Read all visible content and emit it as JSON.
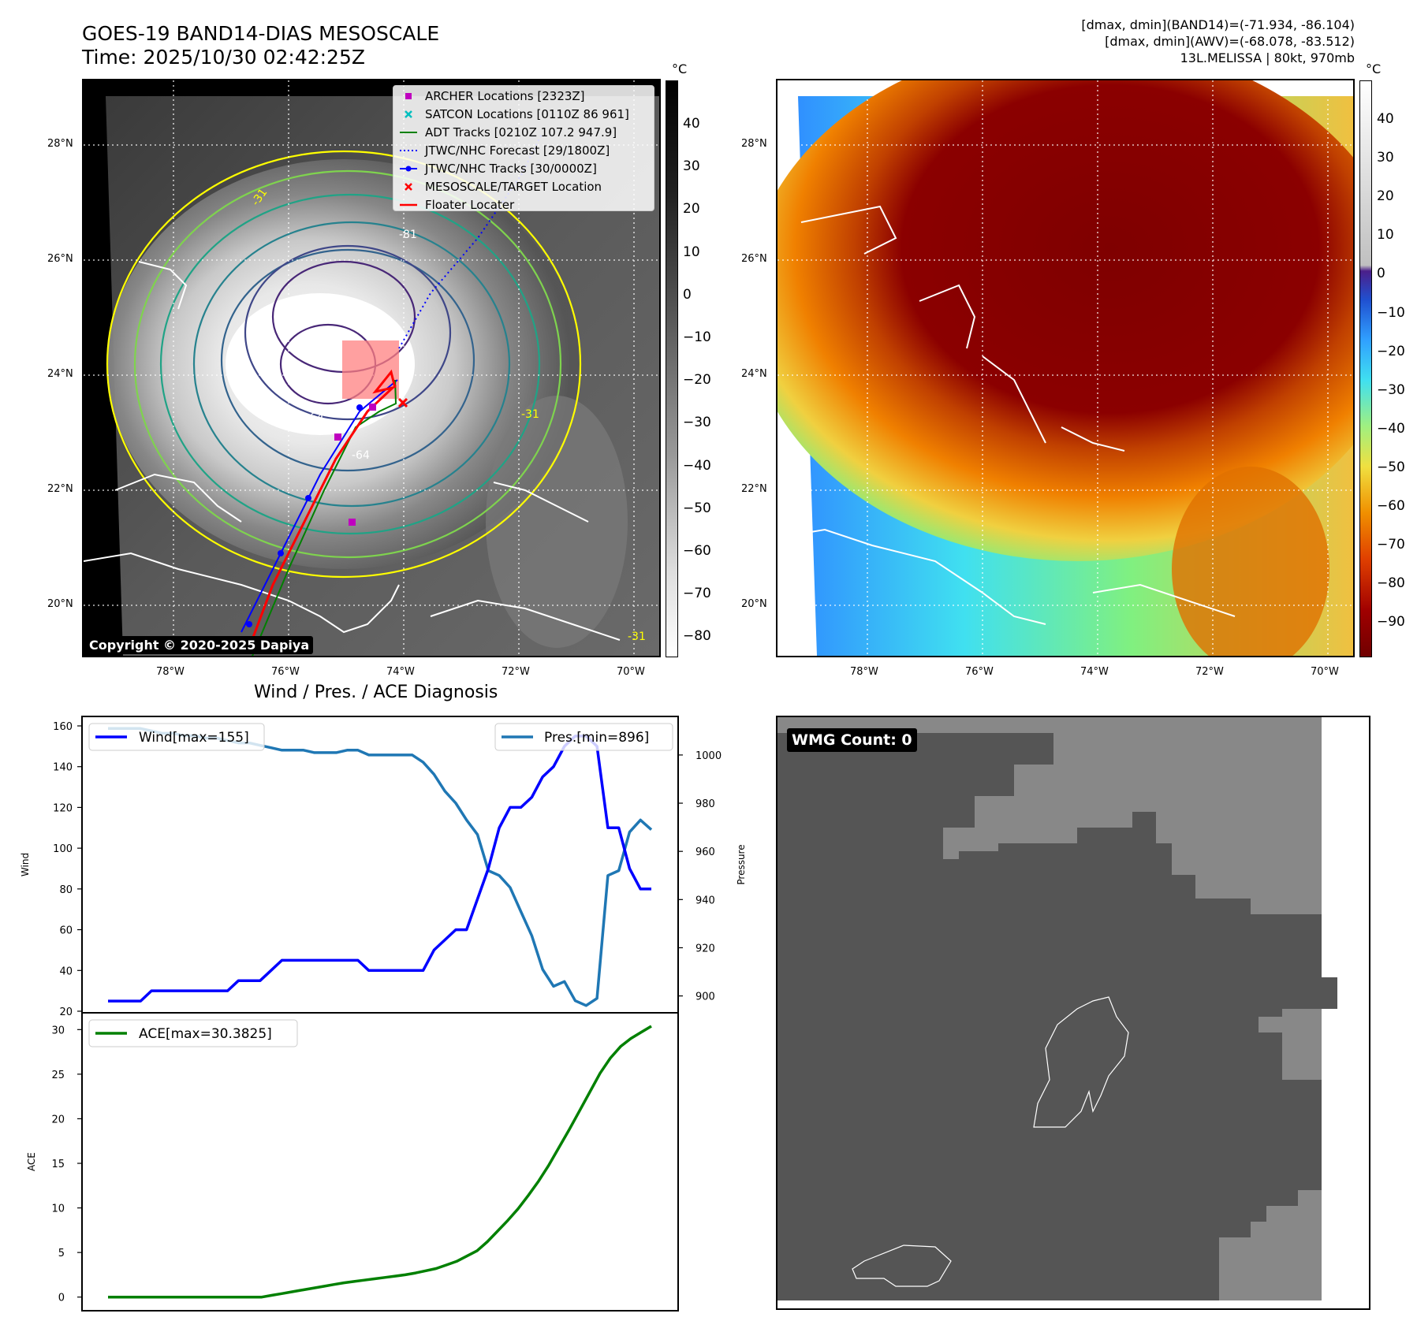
{
  "header": {
    "title_line1": "GOES-19 BAND14-DIAS MESOSCALE",
    "title_line2": "Time: 2025/10/30 02:42:25Z",
    "info_line1": "[dmax, dmin](BAND14)=(-71.934, -86.104)",
    "info_line2": "[dmax, dmin](AWV)=(-68.078, -83.512)",
    "info_line3": "13L.MELISSA | 80kt, 970mb"
  },
  "ir_map": {
    "lat_labels": [
      "28°N",
      "26°N",
      "24°N",
      "22°N",
      "20°N"
    ],
    "lon_labels": [
      "78°W",
      "76°W",
      "74°W",
      "72°W",
      "70°W"
    ],
    "copyright": "Copyright © 2020-2025 Dapiya",
    "colorbar_unit": "°C",
    "colorbar_ticks": [
      "40",
      "30",
      "20",
      "10",
      "0",
      "−10",
      "−20",
      "−30",
      "−40",
      "−50",
      "−60",
      "−70",
      "−80"
    ],
    "contour_labels": [
      "-31",
      "-81",
      "-81",
      "-64",
      "-64",
      "-31",
      "-31"
    ],
    "legend": [
      {
        "label": "ARCHER Locations [2323Z]",
        "marker": "square",
        "color": "#bf00bf"
      },
      {
        "label": "SATCON Locations [0110Z 86 961]",
        "marker": "x",
        "color": "#00bfbf"
      },
      {
        "label": "ADT Tracks [0210Z 107.2 947.9]",
        "marker": "line",
        "color": "#008000"
      },
      {
        "label": "JTWC/NHC Forecast [29/1800Z]",
        "marker": "dotted",
        "color": "#0000ff"
      },
      {
        "label": "JTWC/NHC Tracks [30/0000Z]",
        "marker": "line-dot",
        "color": "#0000ff"
      },
      {
        "label": "MESOSCALE/TARGET Location",
        "marker": "x",
        "color": "#ff0000"
      },
      {
        "label": "Floater Locater",
        "marker": "line",
        "color": "#ff0000"
      }
    ]
  },
  "enh_map": {
    "lat_labels": [
      "28°N",
      "26°N",
      "24°N",
      "22°N",
      "20°N"
    ],
    "lon_labels": [
      "78°W",
      "76°W",
      "74°W",
      "72°W",
      "70°W"
    ],
    "colorbar_unit": "°C",
    "colorbar_ticks": [
      "40",
      "30",
      "20",
      "10",
      "0",
      "−10",
      "−20",
      "−30",
      "−40",
      "−50",
      "−60",
      "−70",
      "−80",
      "−90"
    ]
  },
  "wmg": {
    "label": "WMG Count: 0"
  },
  "chart_data": [
    {
      "type": "line",
      "title": "Wind / Pres. / ACE Diagnosis",
      "xlabel": "",
      "ylabel": "Wind",
      "ylabel_right": "Pressure",
      "ylim": [
        20,
        160
      ],
      "ylim_right": [
        893,
        1016
      ],
      "y_ticks": [
        "160",
        "140",
        "120",
        "100",
        "80",
        "60",
        "40",
        "20"
      ],
      "y_ticks_right": [
        "1000",
        "980",
        "960",
        "940",
        "920",
        "900"
      ],
      "series": [
        {
          "name": "Wind[max=155]",
          "color": "#0000ff",
          "values": [
            25,
            25,
            25,
            25,
            30,
            30,
            30,
            30,
            30,
            30,
            30,
            30,
            35,
            35,
            35,
            40,
            45,
            45,
            45,
            45,
            45,
            45,
            45,
            45,
            40,
            40,
            40,
            40,
            40,
            40,
            50,
            55,
            60,
            60,
            75,
            90,
            110,
            120,
            120,
            125,
            135,
            140,
            150,
            155,
            155,
            150,
            110,
            110,
            90,
            80,
            80
          ]
        },
        {
          "name": "Pres.[min=896]",
          "color": "#1f77b4",
          "values": [
            1011,
            1011,
            1011,
            1011,
            1010,
            1009,
            1009,
            1008,
            1008,
            1007,
            1007,
            1006,
            1005,
            1005,
            1004,
            1003,
            1002,
            1002,
            1002,
            1001,
            1001,
            1001,
            1002,
            1002,
            1000,
            1000,
            1000,
            1000,
            1000,
            997,
            992,
            985,
            980,
            973,
            967,
            952,
            950,
            945,
            935,
            925,
            911,
            904,
            906,
            898,
            896,
            899,
            950,
            952,
            968,
            973,
            969
          ]
        }
      ]
    },
    {
      "type": "line",
      "xlabel": "",
      "ylabel": "ACE",
      "ylim": [
        -1,
        31
      ],
      "y_ticks": [
        "30",
        "25",
        "20",
        "15",
        "10",
        "5",
        "0"
      ],
      "series": [
        {
          "name": "ACE[max=30.3825]",
          "color": "#008000",
          "values": [
            0,
            0,
            0,
            0,
            0,
            0,
            0,
            0,
            0,
            0,
            0,
            0,
            0,
            0,
            0,
            0,
            0.2,
            0.4,
            0.6,
            0.8,
            1.0,
            1.2,
            1.4,
            1.6,
            1.75,
            1.9,
            2.05,
            2.2,
            2.35,
            2.5,
            2.7,
            2.95,
            3.2,
            3.6,
            4.0,
            4.6,
            5.2,
            6.2,
            7.4,
            8.6,
            9.9,
            11.4,
            13.0,
            14.8,
            16.8,
            18.8,
            20.9,
            23.0,
            25.1,
            26.8,
            28.1,
            29.0,
            29.7,
            30.38
          ]
        }
      ]
    }
  ]
}
